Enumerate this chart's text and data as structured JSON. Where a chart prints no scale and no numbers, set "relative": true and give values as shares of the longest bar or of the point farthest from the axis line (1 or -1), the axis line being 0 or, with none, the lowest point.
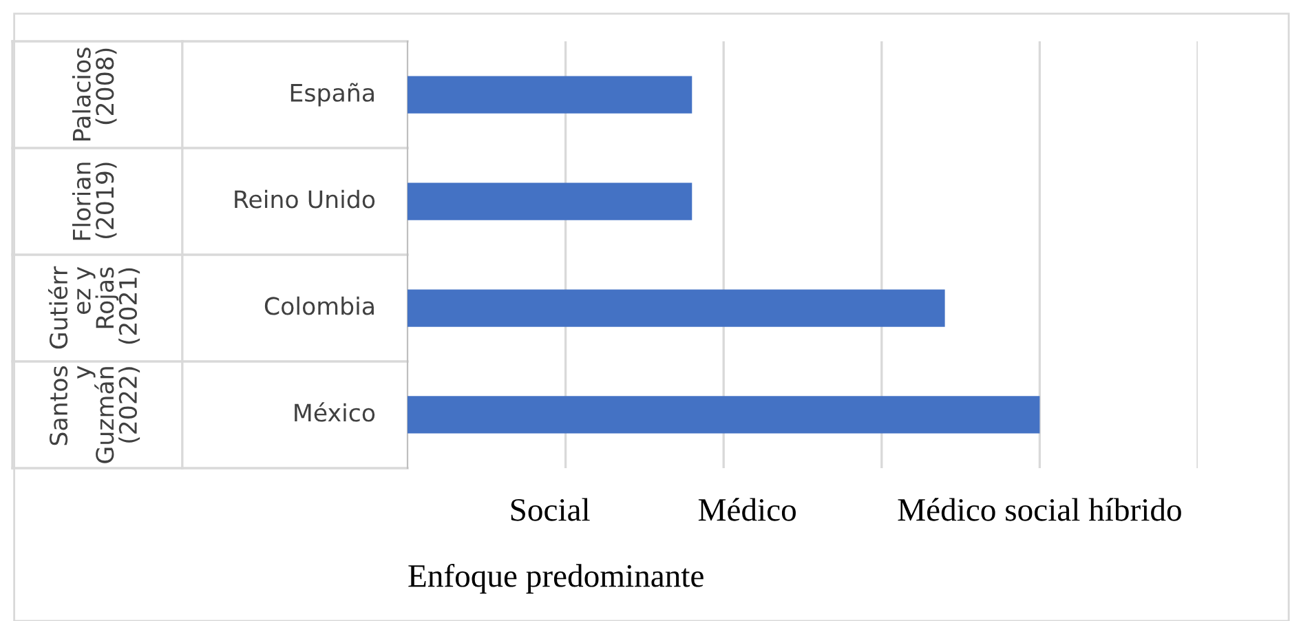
{
  "chart_data": {
    "type": "bar",
    "orientation": "horizontal",
    "relative": true,
    "xlabel": "Enfoque predominante",
    "categories": [
      "España",
      "Reino Unido",
      "Colombia",
      "México"
    ],
    "annotations": [
      "Palacios\n(2008)",
      "Florian\n(2019)",
      "Gutiérr\nez y\nRojas\n(2021)",
      "Santos\ny\nGuzmán\n(2022)",
      "Social",
      "Médico",
      "Médico social híbrido"
    ],
    "values": [
      0.45,
      0.45,
      0.85,
      1.0
    ],
    "color": "#4472c4",
    "grid": "x"
  }
}
